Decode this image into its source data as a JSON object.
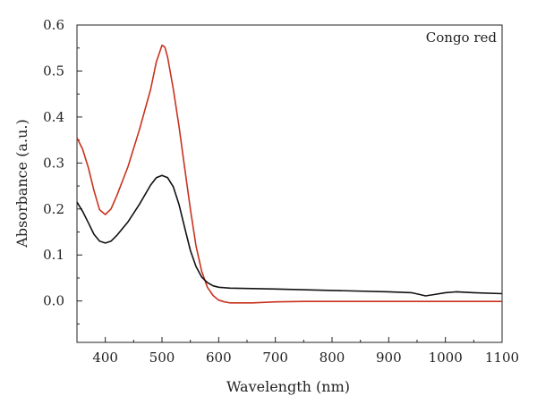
{
  "chart_data": {
    "type": "line",
    "title": "",
    "xlabel": "Wavelength (nm)",
    "ylabel": "Absorbance (a.u.)",
    "xlim": [
      350,
      1100
    ],
    "ylim": [
      -0.09,
      0.6
    ],
    "x_ticks": [
      400,
      500,
      600,
      700,
      800,
      900,
      1000,
      1100
    ],
    "y_ticks": [
      0.0,
      0.1,
      0.2,
      0.3,
      0.4,
      0.5,
      0.6
    ],
    "x_tick_labels": [
      "400",
      "500",
      "600",
      "700",
      "800",
      "900",
      "1000",
      "1100"
    ],
    "y_tick_labels": [
      "0.0",
      "0.1",
      "0.2",
      "0.3",
      "0.4",
      "0.5",
      "0.6"
    ],
    "grid": false,
    "annotation": "Congo red",
    "series": [
      {
        "color": "#c8321e",
        "points": [
          [
            350,
            0.355
          ],
          [
            360,
            0.33
          ],
          [
            370,
            0.29
          ],
          [
            380,
            0.24
          ],
          [
            390,
            0.198
          ],
          [
            400,
            0.188
          ],
          [
            410,
            0.2
          ],
          [
            420,
            0.228
          ],
          [
            440,
            0.292
          ],
          [
            460,
            0.372
          ],
          [
            480,
            0.46
          ],
          [
            490,
            0.52
          ],
          [
            500,
            0.556
          ],
          [
            505,
            0.552
          ],
          [
            510,
            0.53
          ],
          [
            520,
            0.46
          ],
          [
            530,
            0.38
          ],
          [
            540,
            0.29
          ],
          [
            550,
            0.2
          ],
          [
            560,
            0.12
          ],
          [
            570,
            0.065
          ],
          [
            580,
            0.03
          ],
          [
            590,
            0.012
          ],
          [
            600,
            0.002
          ],
          [
            610,
            -0.002
          ],
          [
            620,
            -0.004
          ],
          [
            660,
            -0.004
          ],
          [
            700,
            -0.002
          ],
          [
            750,
            -0.001
          ],
          [
            800,
            -0.001
          ],
          [
            900,
            -0.001
          ],
          [
            1000,
            -0.001
          ],
          [
            1100,
            -0.001
          ]
        ]
      },
      {
        "color": "#111111",
        "points": [
          [
            350,
            0.215
          ],
          [
            360,
            0.195
          ],
          [
            370,
            0.17
          ],
          [
            380,
            0.145
          ],
          [
            390,
            0.13
          ],
          [
            400,
            0.126
          ],
          [
            410,
            0.13
          ],
          [
            420,
            0.142
          ],
          [
            440,
            0.172
          ],
          [
            460,
            0.21
          ],
          [
            480,
            0.252
          ],
          [
            490,
            0.268
          ],
          [
            500,
            0.273
          ],
          [
            510,
            0.268
          ],
          [
            520,
            0.248
          ],
          [
            530,
            0.21
          ],
          [
            540,
            0.16
          ],
          [
            550,
            0.11
          ],
          [
            560,
            0.075
          ],
          [
            570,
            0.052
          ],
          [
            580,
            0.04
          ],
          [
            590,
            0.033
          ],
          [
            600,
            0.03
          ],
          [
            620,
            0.028
          ],
          [
            700,
            0.026
          ],
          [
            800,
            0.023
          ],
          [
            900,
            0.02
          ],
          [
            940,
            0.018
          ],
          [
            955,
            0.014
          ],
          [
            965,
            0.011
          ],
          [
            980,
            0.014
          ],
          [
            1000,
            0.018
          ],
          [
            1020,
            0.02
          ],
          [
            1050,
            0.018
          ],
          [
            1100,
            0.016
          ]
        ]
      }
    ]
  }
}
